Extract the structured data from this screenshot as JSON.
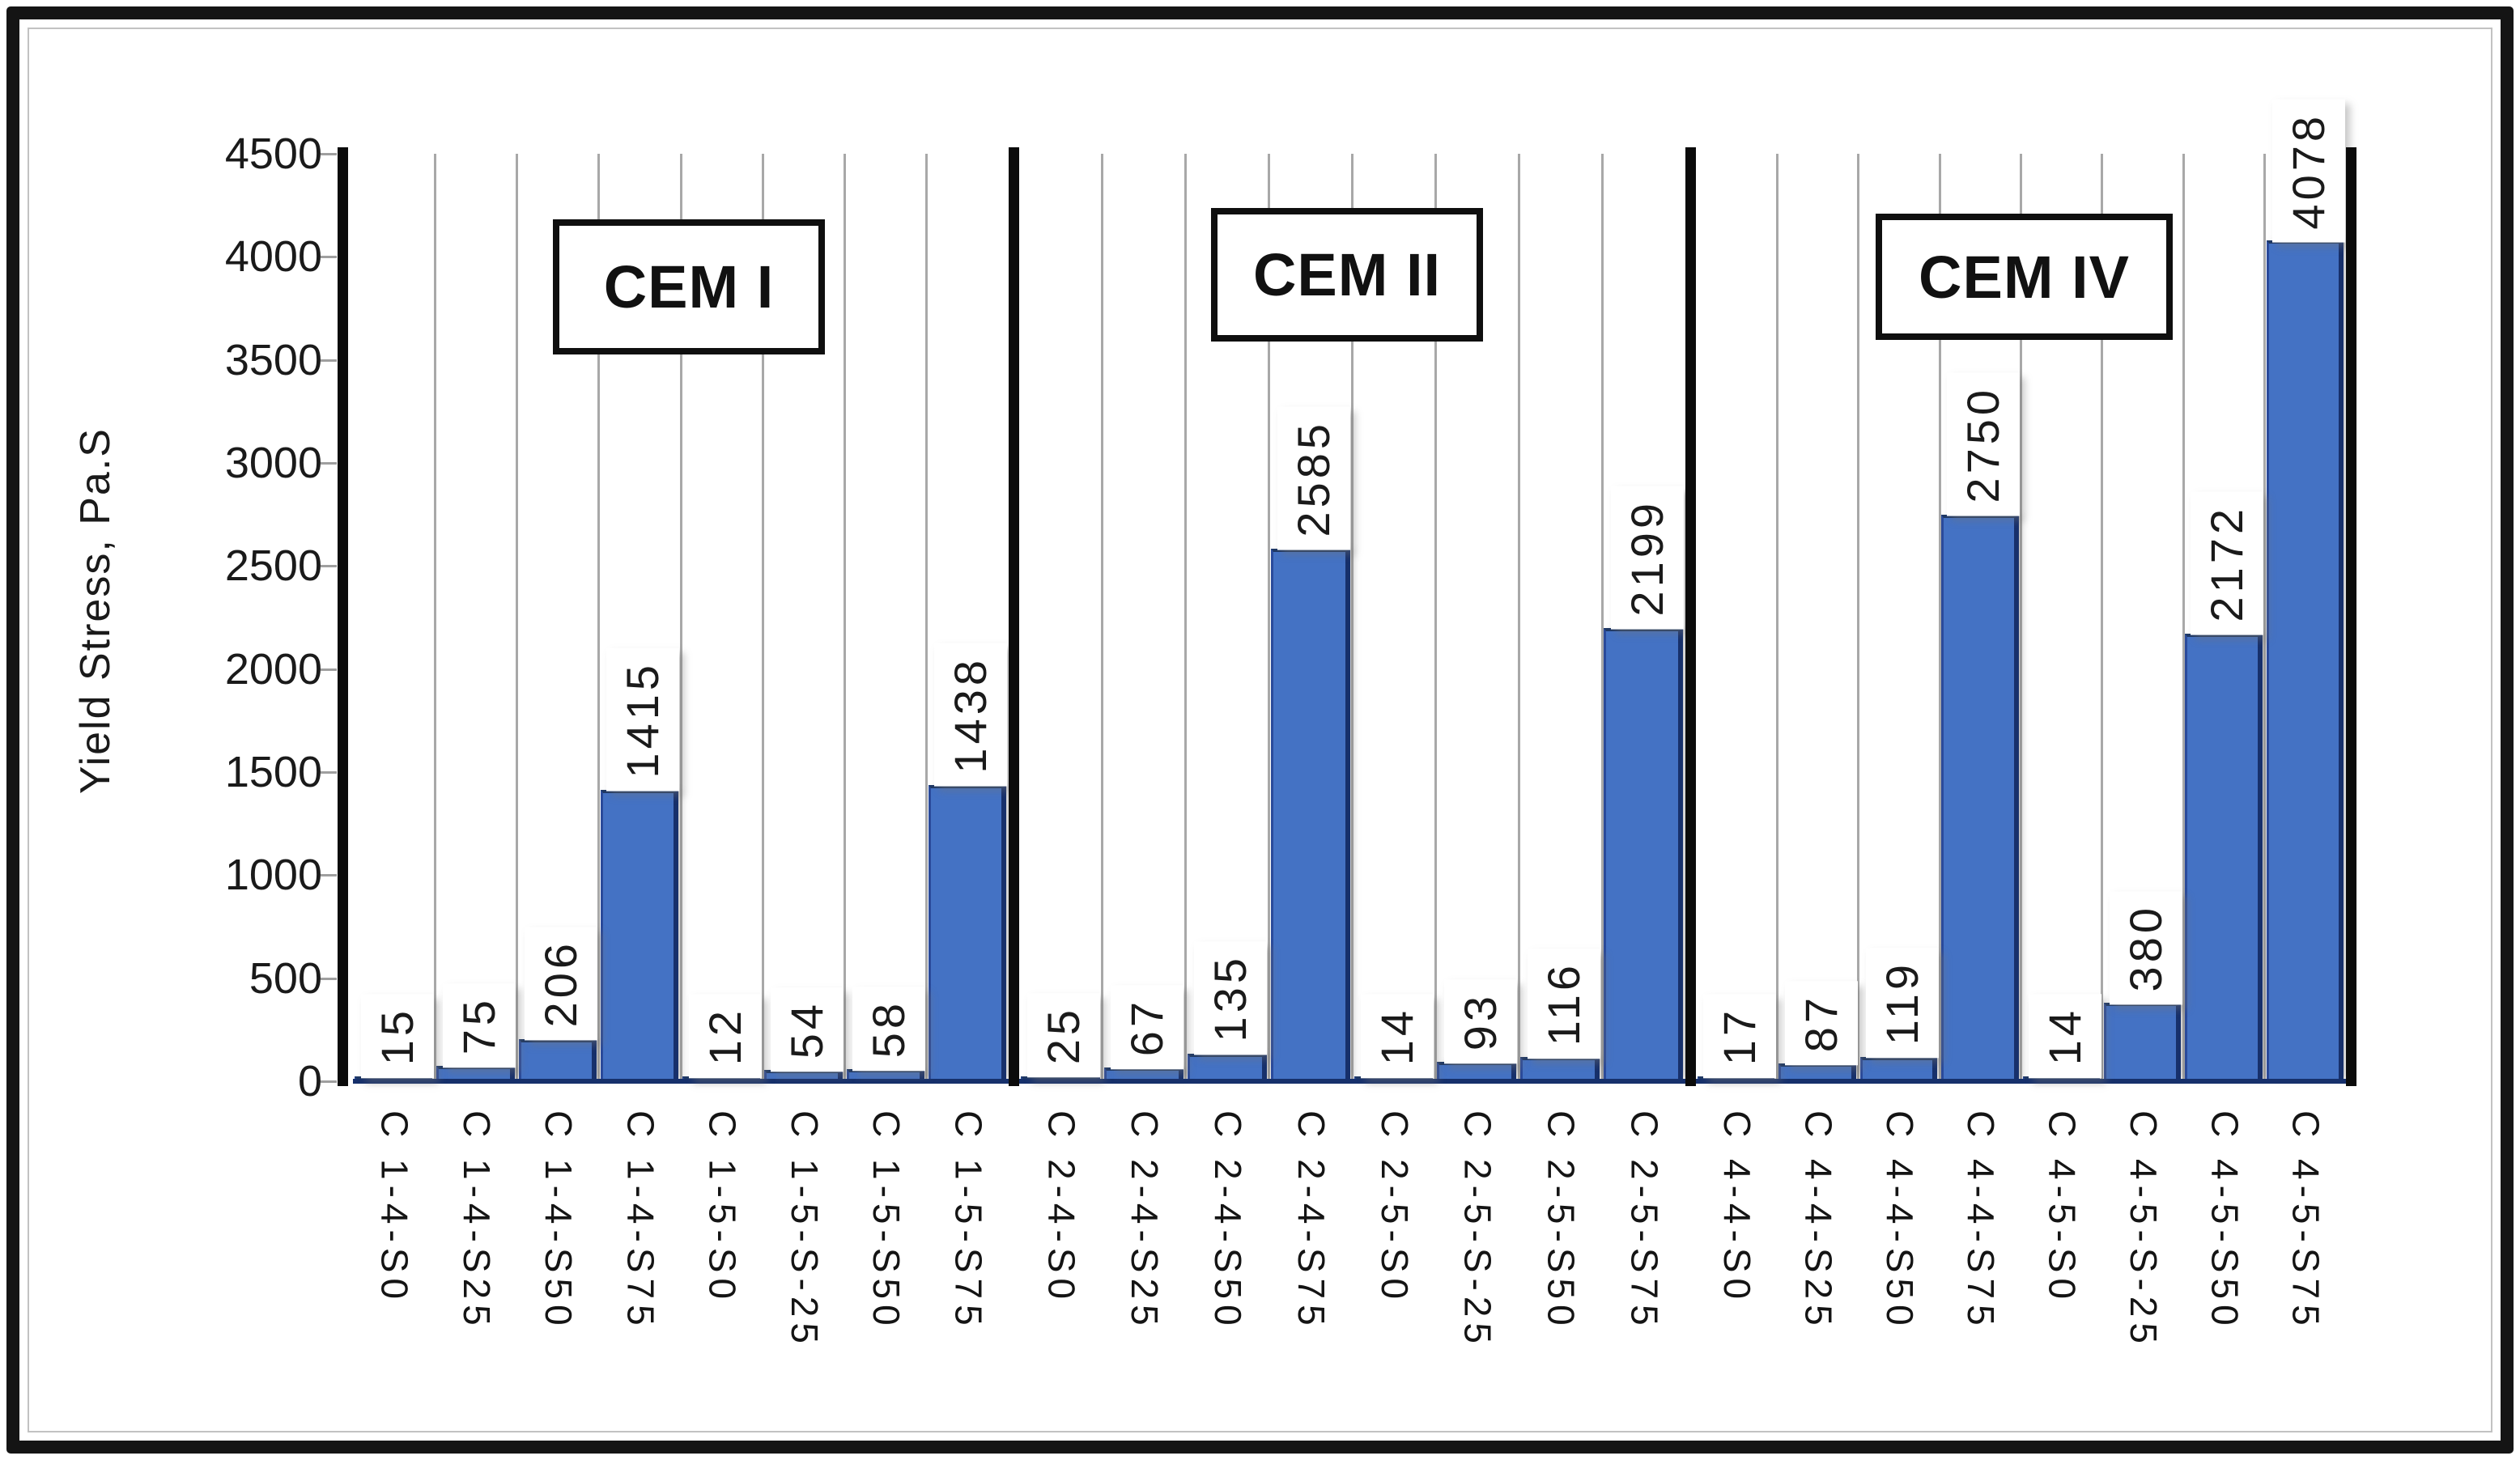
{
  "chart_data": {
    "type": "bar",
    "title": "",
    "ylabel": "Yield Stress, Pa.S",
    "xlabel": "",
    "ylim": [
      0,
      4500
    ],
    "ytick_step": 500,
    "yticks": [
      0,
      500,
      1000,
      1500,
      2000,
      2500,
      3000,
      3500,
      4000,
      4500
    ],
    "grid": "vertical category separator lines only",
    "legend": "none",
    "bar_color": "#4472C4",
    "bar_edge_color": "#1F3864",
    "gridline_color": "#A8A8A8",
    "frame_color": "#141414",
    "groups": [
      {
        "name": "CEM I",
        "categories": [
          "C 1-4-S0",
          "C 1-4-S25",
          "C 1-4-S50",
          "C 1-4-S75",
          "C 1-5-S0",
          "C 1-5-S-25",
          "C 1-5-S50",
          "C 1-5-S75"
        ],
        "values": [
          15,
          75,
          206,
          1415,
          12,
          54,
          58,
          1438
        ]
      },
      {
        "name": "CEM II",
        "categories": [
          "C 2-4-S0",
          "C 2-4-S25",
          "C 2-4-S50",
          "C 2-4-S75",
          "C 2-5-S0",
          "C 2-5-S-25",
          "C 2-5-S50",
          "C 2-5-S75"
        ],
        "values": [
          25,
          67,
          135,
          2585,
          14,
          93,
          116,
          2199
        ]
      },
      {
        "name": "CEM IV",
        "categories": [
          "C 4-4-S0",
          "C 4-4-S25",
          "C 4-4-S50",
          "C 4-4-S75",
          "C 4-5-S0",
          "C 4-5-S-25",
          "C 4-5-S50",
          "C 4-5-S75"
        ],
        "values": [
          17,
          87,
          119,
          2750,
          14,
          380,
          2172,
          4078
        ]
      }
    ]
  }
}
